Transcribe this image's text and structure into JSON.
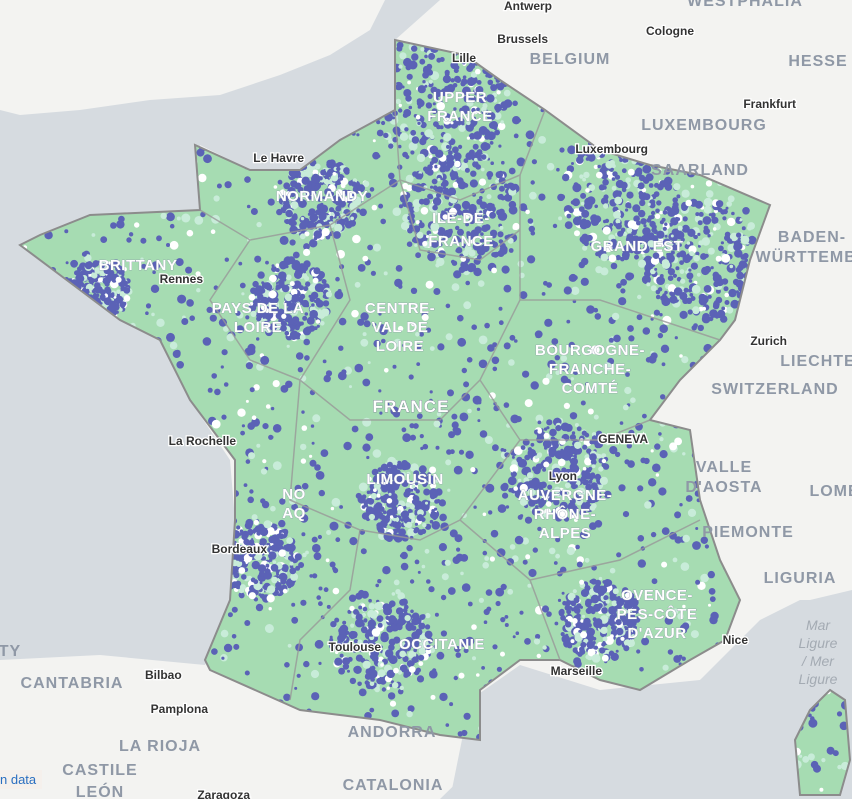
{
  "map": {
    "colors": {
      "sea": "#d6dbe0",
      "land": "#f3f3f1",
      "france_base": "#a6dcb2",
      "dense": "#5b62b6",
      "light": "#c8ecd9",
      "border": "#8c8c8c"
    },
    "regions": [
      "UPPER",
      "FRANCE",
      "NORMANDY",
      "ILE-DE-",
      "FRANCE",
      "GRAND EST",
      "BRITTANY",
      "PAYS DE LA",
      "LOIRE",
      "CENTRE-",
      "VAL DE",
      "LOIRE",
      "BOURGOGNE-",
      "FRANCHE-",
      "COMTÉ",
      "NO",
      "AQ",
      "LIMOUSIN",
      "AUVERGNE-",
      "RHÔNE-",
      "ALPES",
      "OCCITANIE",
      "OVENCE-",
      "PES-CÔTE",
      "D'AZUR"
    ],
    "country_france": "FRANCE",
    "countries": [
      "BELGIUM",
      "LUXEMBOURG",
      "SAARLAND",
      "HESSE",
      "WESTPHALIA",
      "BADEN-",
      "WÜRTTEMBE",
      "LIECHTE",
      "SWITZERLAND",
      "VALLE",
      "D'AOSTA",
      "PIEMONTE",
      "LOMB",
      "LIGURIA",
      "ANDORRA",
      "CATALONIA",
      "CANTABRIA",
      "LA RIOJA",
      "CASTILE",
      "LEÓN",
      "TY"
    ],
    "cities": [
      "Antwerp",
      "Brussels",
      "Cologne",
      "Lille",
      "Frankfurt",
      "Luxembourg",
      "Le Havre",
      "Rennes",
      "Zurich",
      "GENEVA",
      "Lyon",
      "La Rochelle",
      "Bordeaux",
      "Toulouse",
      "Marseille",
      "Nice",
      "Bilbao",
      "Pamplona",
      "Zaragoza"
    ],
    "seas": [
      "Mar",
      "Ligure",
      "/ Mer",
      "Ligure"
    ],
    "attribution": "n data"
  }
}
